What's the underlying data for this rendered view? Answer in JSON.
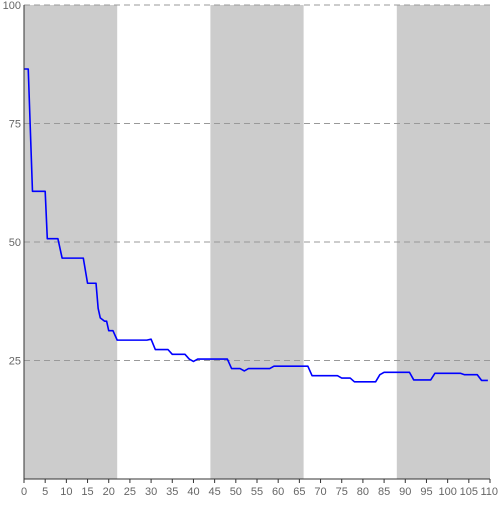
{
  "chart_data": {
    "type": "line",
    "title": "",
    "xlabel": "",
    "ylabel": "",
    "xlim": [
      0,
      110
    ],
    "ylim": [
      0,
      100
    ],
    "x_ticks": [
      0,
      5,
      10,
      15,
      20,
      25,
      30,
      35,
      40,
      45,
      50,
      55,
      60,
      65,
      70,
      75,
      80,
      85,
      90,
      95,
      100,
      105,
      110
    ],
    "x_tick_labels": [
      "0",
      "5",
      "10",
      "15",
      "20",
      "25",
      "30",
      "35",
      "40",
      "45",
      "50",
      "55",
      "60",
      "65",
      "70",
      "75",
      "80",
      "85",
      "90",
      "95",
      "100",
      "105",
      "110"
    ],
    "y_ticks": [
      25,
      50,
      75,
      100
    ],
    "y_tick_labels": [
      "25",
      "50",
      "75",
      "100"
    ],
    "grid": {
      "horizontal": true,
      "style": "dashed",
      "color": "#999999"
    },
    "bands": [
      {
        "x_start": 0,
        "x_end": 22,
        "color": "#cccccc"
      },
      {
        "x_start": 44,
        "x_end": 66,
        "color": "#cccccc"
      },
      {
        "x_start": 88,
        "x_end": 110,
        "color": "#cccccc"
      }
    ],
    "series": [
      {
        "color": "#0000ff",
        "points": [
          [
            0,
            86.5
          ],
          [
            1,
            86.5
          ],
          [
            2,
            60.7
          ],
          [
            5,
            60.7
          ],
          [
            5.5,
            50.7
          ],
          [
            8,
            50.7
          ],
          [
            9,
            46.6
          ],
          [
            14,
            46.6
          ],
          [
            15,
            41.3
          ],
          [
            17,
            41.3
          ],
          [
            17.5,
            36
          ],
          [
            18,
            34
          ],
          [
            19,
            33.3
          ],
          [
            19.5,
            33.3
          ],
          [
            20,
            31.3
          ],
          [
            21,
            31.3
          ],
          [
            22,
            29.3
          ],
          [
            29,
            29.3
          ],
          [
            30,
            29.5
          ],
          [
            31,
            27.3
          ],
          [
            34,
            27.3
          ],
          [
            35,
            26.3
          ],
          [
            38,
            26.3
          ],
          [
            39,
            25.3
          ],
          [
            40,
            24.8
          ],
          [
            41,
            25.3
          ],
          [
            48,
            25.3
          ],
          [
            49,
            23.3
          ],
          [
            51,
            23.3
          ],
          [
            52,
            22.8
          ],
          [
            53,
            23.3
          ],
          [
            58,
            23.3
          ],
          [
            59,
            23.8
          ],
          [
            67,
            23.8
          ],
          [
            68,
            21.8
          ],
          [
            74,
            21.8
          ],
          [
            75,
            21.3
          ],
          [
            77,
            21.3
          ],
          [
            78,
            20.5
          ],
          [
            83,
            20.5
          ],
          [
            84,
            22
          ],
          [
            85,
            22.5
          ],
          [
            91,
            22.5
          ],
          [
            92,
            20.9
          ],
          [
            96,
            20.9
          ],
          [
            97,
            22.3
          ],
          [
            103,
            22.3
          ],
          [
            104,
            22
          ],
          [
            107,
            22
          ],
          [
            108,
            20.8
          ],
          [
            109.5,
            20.8
          ]
        ]
      }
    ]
  }
}
